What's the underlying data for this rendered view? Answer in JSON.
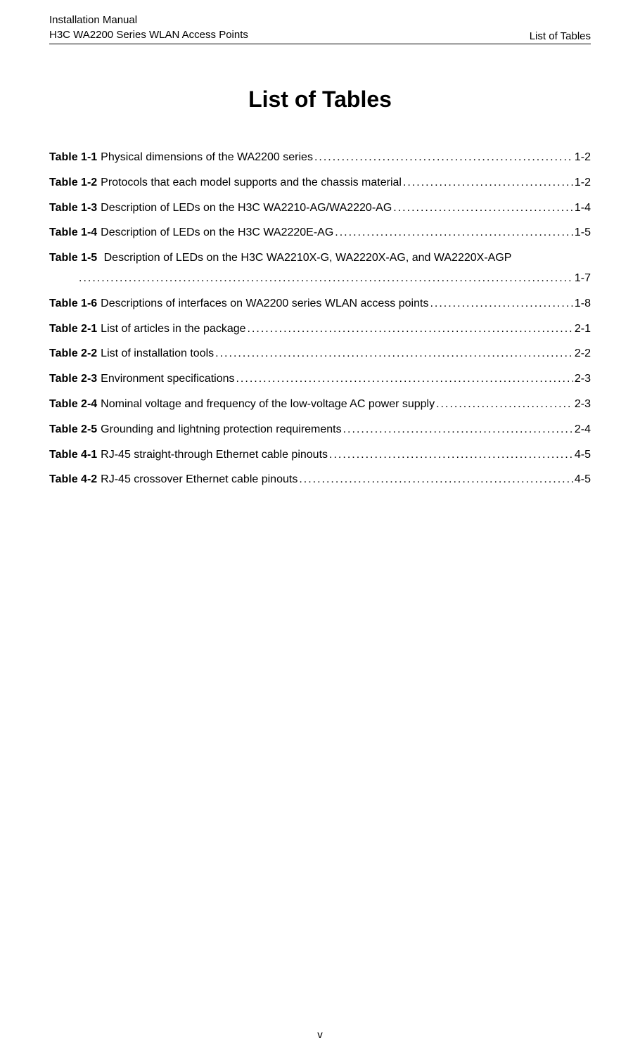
{
  "header": {
    "line1": "Installation Manual",
    "line2": "H3C WA2200 Series WLAN Access Points",
    "right": "List of Tables"
  },
  "title": "List of Tables",
  "entries": [
    {
      "label": "Table 1-1",
      "text": "Physical dimensions of the WA2200 series",
      "page": "1-2",
      "wrapped": false
    },
    {
      "label": "Table 1-2",
      "text": "Protocols that each model supports and the chassis material",
      "page": "1-2",
      "wrapped": false
    },
    {
      "label": "Table 1-3",
      "text": "Description of LEDs on the H3C WA2210-AG/WA2220-AG",
      "page": "1-4",
      "wrapped": false
    },
    {
      "label": "Table 1-4",
      "text": "Description of LEDs on the H3C WA2220E-AG",
      "page": "1-5",
      "wrapped": false
    },
    {
      "label": "Table 1-5",
      "text": "Description of LEDs on the H3C WA2210X-G, WA2220X-AG, and WA2220X-AGP",
      "page": "1-7",
      "wrapped": true
    },
    {
      "label": "Table 1-6",
      "text": "Descriptions of interfaces on WA2200 series WLAN access points",
      "page": "1-8",
      "wrapped": false
    },
    {
      "label": "Table 2-1",
      "text": "List of articles in the package",
      "page": "2-1",
      "wrapped": false
    },
    {
      "label": "Table 2-2",
      "text": "List of installation tools",
      "page": "2-2",
      "wrapped": false
    },
    {
      "label": "Table 2-3",
      "text": "Environment specifications",
      "page": "2-3",
      "wrapped": false
    },
    {
      "label": "Table 2-4",
      "text": "Nominal voltage and frequency of the low-voltage AC power supply",
      "page": "2-3",
      "wrapped": false
    },
    {
      "label": "Table 2-5",
      "text": "Grounding and lightning protection requirements",
      "page": "2-4",
      "wrapped": false
    },
    {
      "label": "Table 4-1",
      "text": "RJ-45 straight-through Ethernet cable pinouts",
      "page": "4-5",
      "wrapped": false
    },
    {
      "label": "Table 4-2",
      "text": "RJ-45 crossover Ethernet cable pinouts",
      "page": "4-5",
      "wrapped": false
    }
  ],
  "footer": "v"
}
